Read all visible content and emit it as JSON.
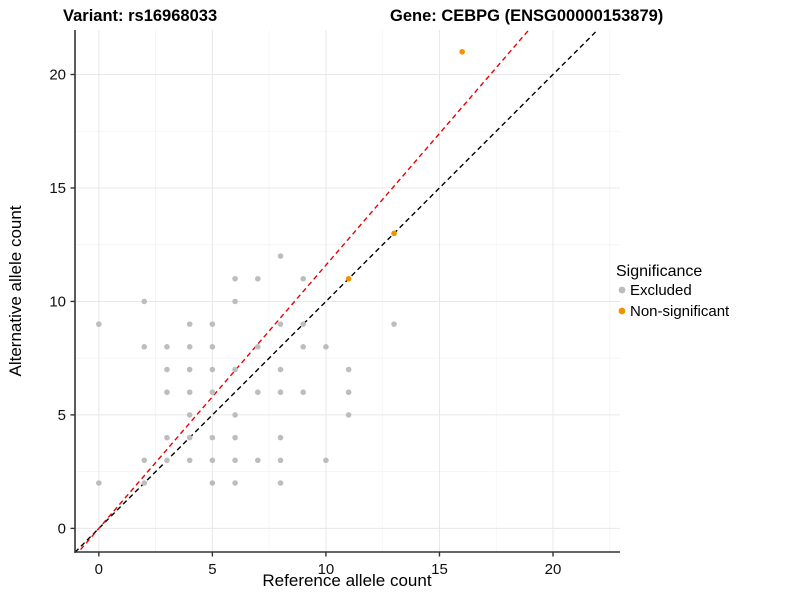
{
  "titles": {
    "variant": "Variant: rs16968033",
    "gene": "Gene: CEBPG (ENSG00000153879)"
  },
  "legend": {
    "title": "Significance",
    "items": [
      {
        "label": "Excluded",
        "color": "#bdbdbd"
      },
      {
        "label": "Non-significant",
        "color": "#f39200"
      }
    ]
  },
  "colors": {
    "excluded_point": "#bdbdbd",
    "nonsignificant_point": "#f39200",
    "identity_line": "#000000",
    "fit_line": "#ec0000",
    "axis_line": "#333333",
    "major_grid": "#e8e8e8",
    "minor_grid": "#f4f4f4"
  },
  "chart_data": {
    "type": "scatter",
    "title_left": "Variant: rs16968033",
    "title_right": "Gene: CEBPG (ENSG00000153879)",
    "xlabel": "Reference allele count",
    "ylabel": "Alternative allele count",
    "xlim": [
      -1.05,
      22.95
    ],
    "ylim": [
      -1.04,
      21.96
    ],
    "x_ticks": [
      0,
      5,
      10,
      15,
      20
    ],
    "y_ticks": [
      0,
      5,
      10,
      15,
      20
    ],
    "minor_x": [
      2.5,
      7.5,
      12.5,
      17.5,
      22.5
    ],
    "minor_y": [
      2.5,
      7.5,
      12.5,
      17.5
    ],
    "grid": true,
    "legend_position": "right",
    "legend_title": "Significance",
    "series": [
      {
        "name": "Excluded",
        "color": "#bdbdbd",
        "points": [
          [
            0,
            2
          ],
          [
            0,
            9
          ],
          [
            2,
            2
          ],
          [
            2,
            3
          ],
          [
            2,
            8
          ],
          [
            2,
            10
          ],
          [
            3,
            3
          ],
          [
            3,
            4
          ],
          [
            3,
            6
          ],
          [
            3,
            7
          ],
          [
            3,
            8
          ],
          [
            4,
            3
          ],
          [
            4,
            4
          ],
          [
            4,
            5
          ],
          [
            4,
            6
          ],
          [
            4,
            7
          ],
          [
            4,
            8
          ],
          [
            4,
            9
          ],
          [
            5,
            2
          ],
          [
            5,
            3
          ],
          [
            5,
            4
          ],
          [
            5,
            6
          ],
          [
            5,
            7
          ],
          [
            5,
            8
          ],
          [
            5,
            9
          ],
          [
            6,
            2
          ],
          [
            6,
            3
          ],
          [
            6,
            4
          ],
          [
            6,
            5
          ],
          [
            6,
            7
          ],
          [
            6,
            10
          ],
          [
            6,
            11
          ],
          [
            7,
            3
          ],
          [
            7,
            6
          ],
          [
            7,
            8
          ],
          [
            7,
            11
          ],
          [
            8,
            2
          ],
          [
            8,
            3
          ],
          [
            8,
            4
          ],
          [
            8,
            6
          ],
          [
            8,
            7
          ],
          [
            8,
            9
          ],
          [
            8,
            12
          ],
          [
            9,
            6
          ],
          [
            9,
            8
          ],
          [
            9,
            9
          ],
          [
            9,
            11
          ],
          [
            10,
            3
          ],
          [
            10,
            8
          ],
          [
            11,
            5
          ],
          [
            11,
            6
          ],
          [
            11,
            7
          ],
          [
            13,
            9
          ]
        ]
      },
      {
        "name": "Non-significant",
        "color": "#f39200",
        "points": [
          [
            11,
            11
          ],
          [
            13,
            13
          ],
          [
            16,
            21
          ]
        ]
      }
    ],
    "ref_lines": [
      {
        "name": "identity-line",
        "color": "#000000",
        "dashed": true,
        "slope": 1.0,
        "intercept": 0
      },
      {
        "name": "fit-line",
        "color": "#ec0000",
        "dashed": true,
        "slope": 1.16,
        "intercept": 0
      }
    ]
  }
}
